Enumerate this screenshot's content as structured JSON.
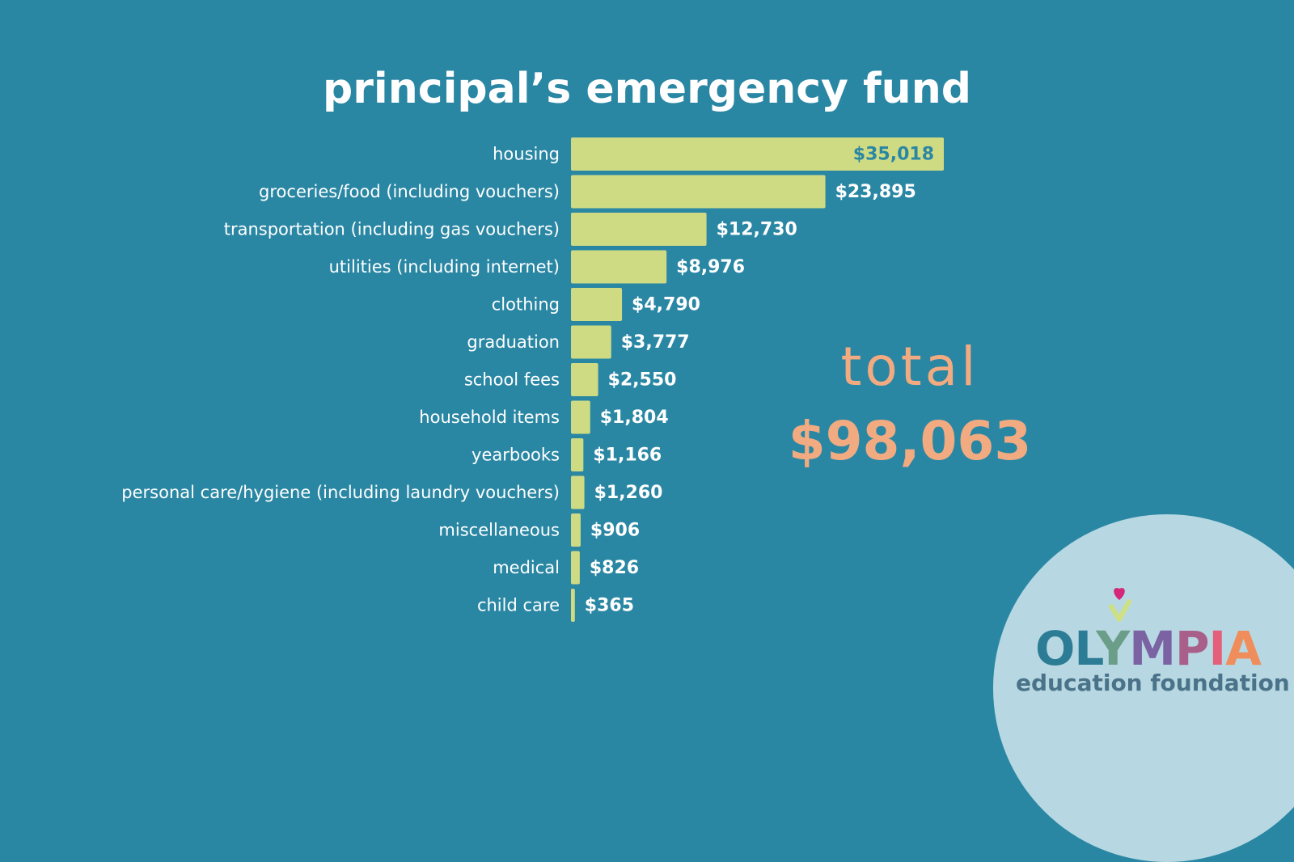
{
  "title": "principal’s emergency fund",
  "total": {
    "label": "total",
    "value": "$98,063"
  },
  "logo": {
    "word": [
      "O",
      "L",
      "Y",
      "M",
      "P",
      "I",
      "A"
    ],
    "word_colors": [
      "#2c7c95",
      "#2c7c95",
      "#6a9e88",
      "#7a62a3",
      "#a85f8a",
      "#e35f7a",
      "#ef8e5c"
    ],
    "subtitle": "education foundation",
    "heart_color": "#d4267b",
    "check_color": "#cfe083"
  },
  "colors": {
    "background": "#2a87a4",
    "bar": "#cfdb83",
    "total": "#f2aa80"
  },
  "chart_data": {
    "type": "bar",
    "orientation": "horizontal",
    "title": "principal’s emergency fund",
    "xlabel": "",
    "ylabel": "",
    "categories": [
      "housing",
      "groceries/food (including vouchers)",
      "transportation (including gas vouchers)",
      "utilities (including internet)",
      "clothing",
      "graduation",
      "school fees",
      "household items",
      "yearbooks",
      "personal care/hygiene (including laundry vouchers)",
      "miscellaneous",
      "medical",
      "child care"
    ],
    "values": [
      35018,
      23895,
      12730,
      8976,
      4790,
      3777,
      2550,
      1804,
      1166,
      1260,
      906,
      826,
      365
    ],
    "value_labels": [
      "$35,018",
      "$23,895",
      "$12,730",
      "$8,976",
      "$4,790",
      "$3,777",
      "$2,550",
      "$1,804",
      "$1,166",
      "$1,260",
      "$906",
      "$826",
      "$365"
    ],
    "xlim": [
      0,
      35018
    ],
    "grid": false,
    "legend": "none"
  }
}
